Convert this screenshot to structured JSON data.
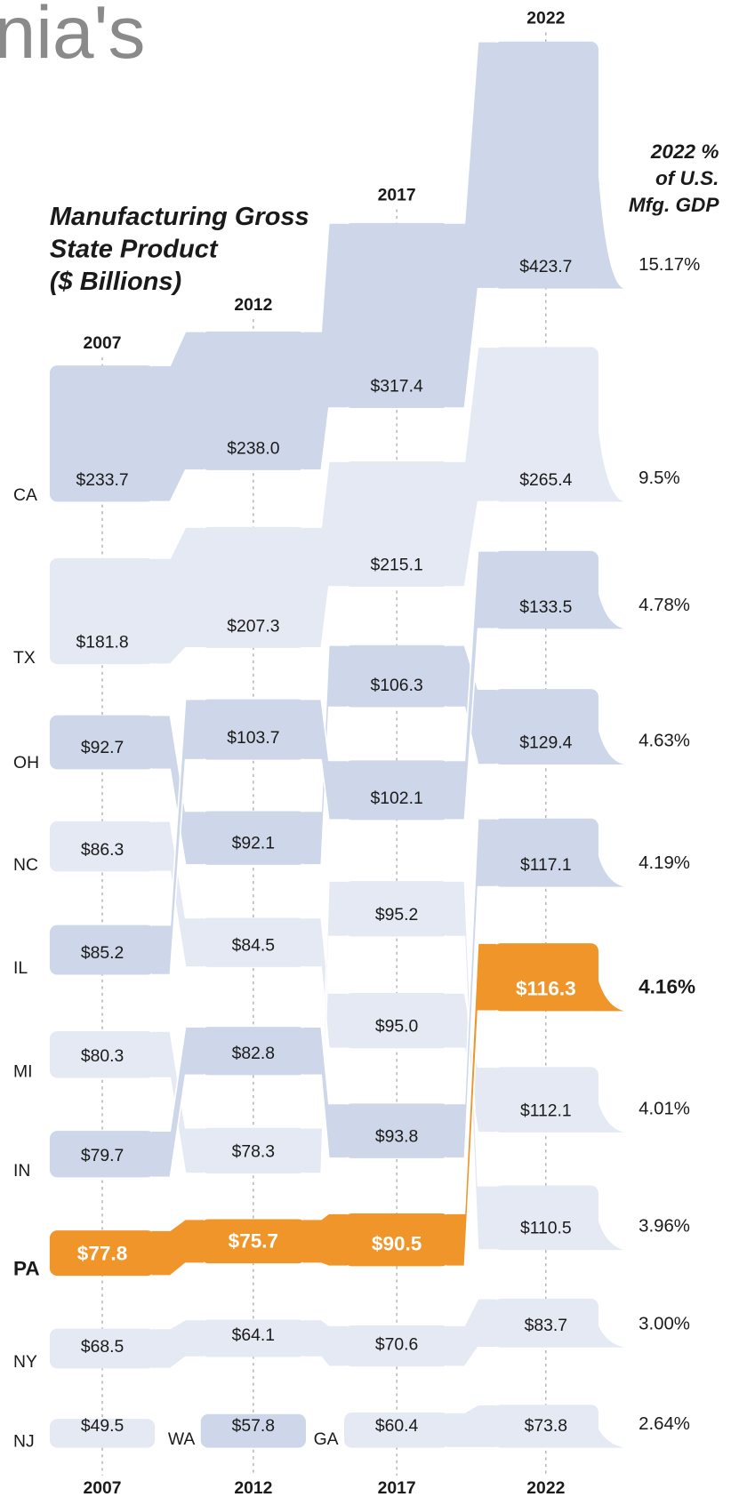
{
  "chart_data": {
    "type": "ribbon",
    "title_fragment": "nia's",
    "title": [
      "Manufacturing Gross",
      "State Product",
      "($ Billions)"
    ],
    "share_header": [
      "2022 %",
      "of U.S.",
      "Mfg. GDP"
    ],
    "categories": [
      "2007",
      "2012",
      "2017",
      "2022"
    ],
    "series": [
      {
        "name": "CA",
        "color": "#cdd7e9",
        "values": [
          233.7,
          238.0,
          317.4,
          423.7
        ],
        "value_labels": [
          "$233.7",
          "$238.0",
          "$317.4",
          "$423.7"
        ],
        "share": 15.17,
        "share_label": "15.17%"
      },
      {
        "name": "TX",
        "color": "#e4e9f3",
        "values": [
          181.8,
          207.3,
          215.1,
          265.4
        ],
        "value_labels": [
          "$181.8",
          "$207.3",
          "$215.1",
          "$265.4"
        ],
        "share": 9.5,
        "share_label": "9.5%"
      },
      {
        "name": "OH",
        "color": "#cdd7e9",
        "values": [
          92.7,
          92.1,
          106.3,
          129.4
        ],
        "value_labels": [
          "$92.7",
          "$92.1",
          "$106.3",
          "$129.4"
        ],
        "share": 4.63,
        "share_label": "4.63%"
      },
      {
        "name": "NC",
        "color": "#e4e9f3",
        "values": [
          86.3,
          84.5,
          95.0,
          112.1
        ],
        "value_labels": [
          "$86.3",
          "$84.5",
          "$95.0",
          "$112.1"
        ],
        "share": 4.01,
        "share_label": "4.01%"
      },
      {
        "name": "IL",
        "color": "#cdd7e9",
        "values": [
          85.2,
          103.7,
          102.1,
          133.5
        ],
        "value_labels": [
          "$85.2",
          "$103.7",
          "$102.1",
          "$133.5"
        ],
        "share": 4.78,
        "share_label": "4.78%"
      },
      {
        "name": "MI",
        "color": "#e4e9f3",
        "values": [
          80.3,
          78.3,
          95.2,
          110.5
        ],
        "value_labels": [
          "$80.3",
          "$78.3",
          "$95.2",
          "$110.5"
        ],
        "share": 3.96,
        "share_label": "3.96%"
      },
      {
        "name": "IN",
        "color": "#cdd7e9",
        "values": [
          79.7,
          82.8,
          93.8,
          117.1
        ],
        "value_labels": [
          "$79.7",
          "$82.8",
          "$93.8",
          "$117.1"
        ],
        "share": 4.19,
        "share_label": "4.19%"
      },
      {
        "name": "PA",
        "color": "#f0952a",
        "highlight": true,
        "values": [
          77.8,
          75.7,
          90.5,
          116.3
        ],
        "value_labels": [
          "$77.8",
          "$75.7",
          "$90.5",
          "$116.3"
        ],
        "share": 4.16,
        "share_label": "4.16%"
      },
      {
        "name": "NY",
        "color": "#e4e9f3",
        "values": [
          68.5,
          64.1,
          70.6,
          83.7
        ],
        "value_labels": [
          "$68.5",
          "$64.1",
          "$70.6",
          "$83.7"
        ],
        "share": 3.0,
        "share_label": "3.00%"
      },
      {
        "name": "NJ",
        "color": "#e4e9f3",
        "values": [
          49.5,
          null,
          null,
          null
        ],
        "value_labels": [
          "$49.5",
          null,
          null,
          null
        ]
      },
      {
        "name": "WA",
        "color": "#cdd7e9",
        "values": [
          null,
          57.8,
          null,
          null
        ],
        "value_labels": [
          null,
          "$57.8",
          null,
          null
        ]
      },
      {
        "name": "GA",
        "color": "#e4e9f3",
        "values": [
          null,
          null,
          60.4,
          73.8
        ],
        "value_labels": [
          null,
          null,
          "$60.4",
          "$73.8"
        ],
        "share": 2.64,
        "share_label": "2.64%"
      }
    ]
  }
}
